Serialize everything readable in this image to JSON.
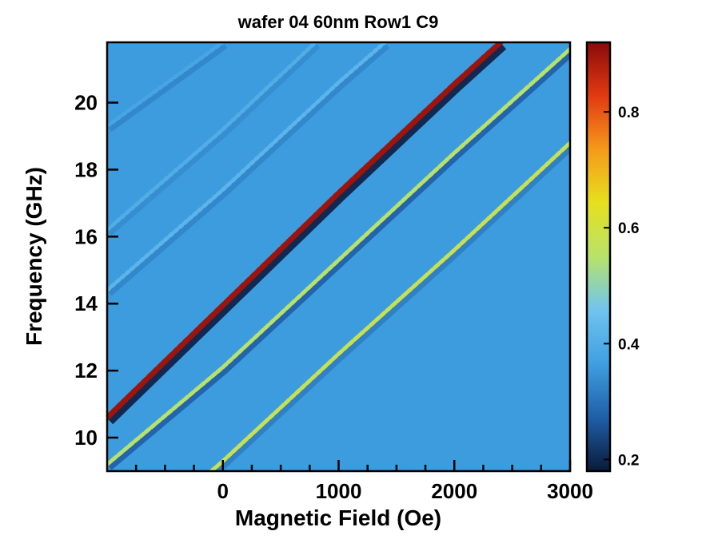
{
  "chart_data": {
    "type": "heatmap",
    "title": "wafer 04 60nm Row1 C9",
    "xlabel": "Magnetic Field (Oe)",
    "ylabel": "Frequency (GHz)",
    "xlim": [
      -1000,
      3000
    ],
    "ylim": [
      9.0,
      21.8
    ],
    "x_ticks": [
      0,
      1000,
      2000,
      3000
    ],
    "x_minor_ticks": [
      -750,
      -500,
      -250,
      250,
      500,
      750,
      1250,
      1500,
      1750,
      2250,
      2500,
      2750
    ],
    "y_ticks": [
      10,
      12,
      14,
      16,
      18,
      20
    ],
    "colorbar": {
      "min": 0.18,
      "max": 0.92,
      "ticks": [
        0.2,
        0.4,
        0.6,
        0.8
      ],
      "colormap": [
        "#0a1a3a",
        "#1f5fa8",
        "#3f9fe0",
        "#6fc4f0",
        "#b8e26a",
        "#e6e01f",
        "#f59a1a",
        "#e23a12",
        "#8a0a0a"
      ]
    },
    "background_value": 0.36,
    "series": [
      {
        "peak_value": 0.9,
        "dip_value": 0.2,
        "points": [
          [
            -1000,
            10.6
          ],
          [
            0,
            13.95
          ],
          [
            1000,
            17.3
          ],
          [
            2000,
            20.55
          ],
          [
            2400,
            21.8
          ]
        ]
      },
      {
        "peak_value": 0.55,
        "dip_value": 0.28,
        "points": [
          [
            -1000,
            9.2
          ],
          [
            0,
            12.1
          ],
          [
            1000,
            15.3
          ],
          [
            2000,
            18.5
          ],
          [
            3000,
            21.6
          ]
        ]
      },
      {
        "peak_value": 0.58,
        "dip_value": 0.32,
        "points": [
          [
            -100,
            9.0
          ],
          [
            0,
            9.3
          ],
          [
            1000,
            12.5
          ],
          [
            2000,
            15.6
          ],
          [
            3000,
            18.8
          ]
        ]
      },
      {
        "peak_value": 0.42,
        "dip_value": 0.33,
        "points": [
          [
            -1000,
            14.4
          ],
          [
            0,
            17.4
          ],
          [
            1000,
            20.6
          ],
          [
            1400,
            21.8
          ]
        ]
      },
      {
        "peak_value": 0.4,
        "dip_value": 0.34,
        "points": [
          [
            -1000,
            16.2
          ],
          [
            0,
            19.2
          ],
          [
            800,
            21.8
          ]
        ]
      },
      {
        "peak_value": 0.38,
        "dip_value": 0.33,
        "points": [
          [
            -1000,
            19.3
          ],
          [
            0,
            21.8
          ]
        ]
      }
    ]
  }
}
